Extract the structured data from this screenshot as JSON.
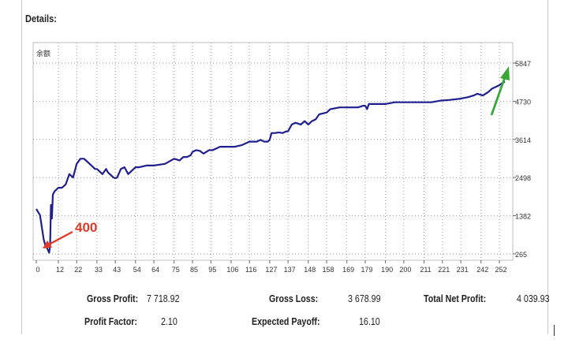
{
  "section_title": "Details:",
  "chart_data": {
    "type": "line",
    "title": "余额",
    "x_ticks": [
      0,
      12,
      22,
      33,
      43,
      54,
      64,
      75,
      85,
      95,
      106,
      116,
      127,
      137,
      148,
      158,
      169,
      179,
      190,
      200,
      211,
      221,
      231,
      242,
      252
    ],
    "y_ticks": [
      265,
      1382,
      2498,
      3614,
      4730,
      5847
    ],
    "xlim": [
      0,
      258
    ],
    "ylim": [
      265,
      5847
    ],
    "grid": true,
    "line_color": "#1f1f8f",
    "x": [
      0,
      2,
      4,
      5,
      6,
      7,
      7.5,
      8,
      8.5,
      9,
      10,
      11,
      12,
      14,
      16,
      18,
      20,
      22,
      24,
      26,
      28,
      30,
      31,
      32,
      33,
      34,
      36,
      38,
      39,
      40,
      42,
      43,
      44,
      46,
      48,
      49,
      50,
      52,
      54,
      56,
      60,
      64,
      70,
      75,
      78,
      80,
      82,
      84,
      85,
      87,
      89,
      91,
      94,
      96,
      100,
      104,
      108,
      112,
      116,
      118,
      120,
      122,
      124,
      126,
      127,
      128,
      130,
      132,
      134,
      136,
      137,
      139,
      141,
      144,
      146,
      148,
      150,
      152,
      154,
      158,
      160,
      165,
      169,
      172,
      175,
      178,
      179,
      180,
      181,
      184,
      188,
      190,
      195,
      200,
      205,
      210,
      215,
      220,
      225,
      230,
      235,
      238,
      240,
      243,
      246,
      248,
      250,
      252,
      254,
      255
    ],
    "y": [
      1580,
      1400,
      700,
      500,
      420,
      300,
      500,
      1700,
      1300,
      2000,
      2100,
      2150,
      2200,
      2200,
      2300,
      2600,
      2500,
      2900,
      3050,
      3050,
      2950,
      2850,
      2800,
      2750,
      2750,
      2700,
      2600,
      2750,
      2650,
      2600,
      2500,
      2480,
      2500,
      2750,
      2800,
      2700,
      2600,
      2700,
      2800,
      2800,
      2850,
      2850,
      2900,
      3050,
      3000,
      3100,
      3100,
      3150,
      3250,
      3300,
      3280,
      3200,
      3300,
      3300,
      3400,
      3400,
      3400,
      3450,
      3550,
      3550,
      3550,
      3600,
      3550,
      3550,
      3600,
      3800,
      3800,
      3820,
      3800,
      3850,
      3850,
      4050,
      4100,
      4050,
      4150,
      4050,
      4150,
      4200,
      4350,
      4400,
      4500,
      4550,
      4550,
      4550,
      4550,
      4600,
      4600,
      4500,
      4650,
      4650,
      4650,
      4650,
      4700,
      4700,
      4700,
      4700,
      4700,
      4750,
      4770,
      4800,
      4850,
      4900,
      4950,
      4900,
      5000,
      5100,
      5150,
      5200,
      5280,
      5300
    ]
  },
  "annotations": {
    "red_label": "400",
    "red_color": "#e0392b",
    "green_color": "#3aa63a"
  },
  "stats": {
    "gross_profit_label": "Gross Profit:",
    "gross_profit_value": "7 718.92",
    "gross_loss_label": "Gross Loss:",
    "gross_loss_value": "3 678.99",
    "total_net_profit_label": "Total Net Profit:",
    "total_net_profit_value": "4 039.93",
    "profit_factor_label": "Profit Factor:",
    "profit_factor_value": "2.10",
    "expected_payoff_label": "Expected Payoff:",
    "expected_payoff_value": "16.10"
  }
}
